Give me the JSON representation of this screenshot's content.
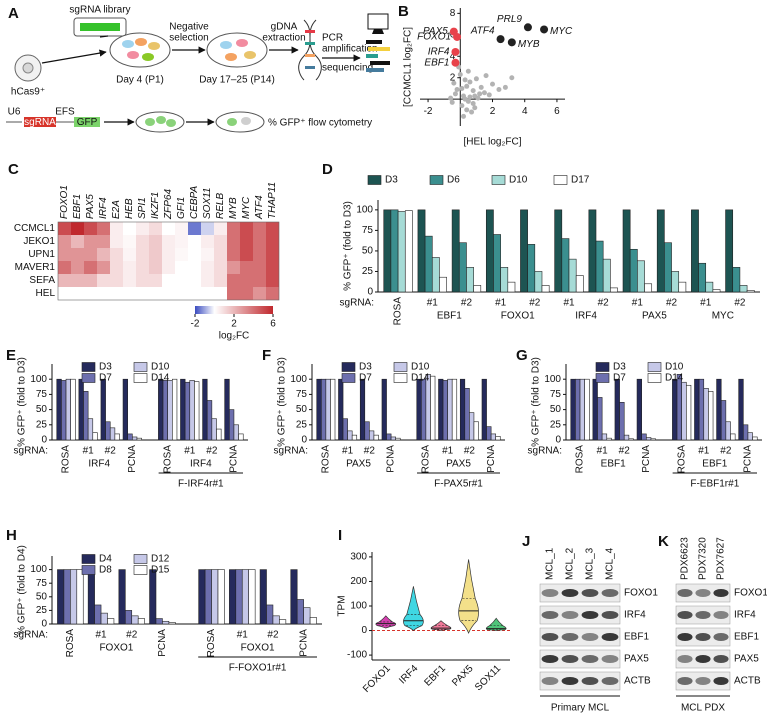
{
  "schematic": {
    "letter": "A",
    "library": "sgRNA library",
    "cell": "hCas9⁺",
    "negative_selection": [
      "Negative",
      "selection"
    ],
    "day1": "Day 4 (P1)",
    "extraction": [
      "gDNA",
      "extraction"
    ],
    "day2": "Day 17–25 (P14)",
    "sequencing": [
      "PCR",
      "amplification",
      "sequencing"
    ],
    "promoter1": "U6",
    "insert": "sgRNA",
    "promoter2": "EFS",
    "reporter": "GFP",
    "readout": "% GFP⁺ flow cytometry"
  },
  "chart_data": [
    {
      "type": "scatter",
      "letter": "B",
      "xlabel": "[HEL log₂FC]",
      "ylabel": "[CCMCL1 log₂FC]",
      "xlim": [
        -2.5,
        6.5
      ],
      "ylim": [
        -2.5,
        8.5
      ],
      "xticks": [
        -2,
        2,
        4,
        6
      ],
      "yticks": [
        2,
        4,
        6,
        8
      ],
      "points": [
        {
          "label": "PAX5",
          "x": -0.4,
          "y": 6.3,
          "color": "#e8424a"
        },
        {
          "label": "FOXO1",
          "x": -0.2,
          "y": 5.8,
          "color": "#e8424a"
        },
        {
          "label": "IRF4",
          "x": -0.3,
          "y": 4.4,
          "color": "#e8424a"
        },
        {
          "label": "EBF1",
          "x": -0.3,
          "y": 3.4,
          "color": "#e8424a"
        },
        {
          "label": "PRL9",
          "x": 4.2,
          "y": 6.7,
          "color": "#222222"
        },
        {
          "label": "MYC",
          "x": 5.2,
          "y": 6.5,
          "color": "#222222"
        },
        {
          "label": "ATF4",
          "x": 2.5,
          "y": 5.6,
          "color": "#222222"
        },
        {
          "label": "MYB",
          "x": 3.2,
          "y": 5.3,
          "color": "#222222"
        }
      ],
      "background": {
        "color": "#b3b3b3",
        "x": [
          0.2,
          0.5,
          -0.3,
          0.8,
          1.1,
          0.1,
          -0.5,
          0.4,
          1.5,
          0.9,
          0.3,
          -0.2,
          0.6,
          1.3,
          2.0,
          0.7,
          -0.6,
          0.0,
          0.2,
          1.8,
          2.4,
          0.5,
          1.0,
          0.3,
          -0.4,
          0.8,
          1.6,
          0.1,
          0.4,
          2.8,
          1.2,
          -0.1,
          0.6,
          0.9,
          3.2
        ],
        "y": [
          0.3,
          -0.2,
          0.5,
          0.8,
          0.1,
          -0.6,
          -0.3,
          1.2,
          0.6,
          -0.8,
          1.8,
          0.9,
          0.2,
          1.1,
          1.4,
          -1.2,
          0.1,
          2.3,
          -1.6,
          0.4,
          0.9,
          2.6,
          1.9,
          0.0,
          1.5,
          -0.4,
          2.2,
          1.0,
          -1.0,
          1.1,
          0.5,
          3.0,
          1.6,
          0.3,
          2.0
        ]
      }
    },
    {
      "type": "heatmap",
      "letter": "C",
      "columns": [
        "FOXO1",
        "EBF1",
        "PAX5",
        "IRF4",
        "E2A",
        "HEB",
        "SPI1",
        "IKZF1",
        "ZFP64",
        "GFI1",
        "CEBPA",
        "SOX11",
        "RELB",
        "MYB",
        "MYC",
        "ATF4",
        "THAP11"
      ],
      "rows": [
        "CCMCL1",
        "JEKO1",
        "UPN1",
        "MAVER1",
        "SEFA",
        "HEL"
      ],
      "values": [
        [
          5,
          6,
          5,
          4,
          0.5,
          0,
          0.5,
          1,
          0,
          0.3,
          -1.5,
          -0.5,
          0.5,
          4,
          5,
          4,
          5
        ],
        [
          3,
          2,
          3,
          3,
          0.5,
          0.2,
          1,
          1.5,
          0.5,
          0.3,
          0,
          0.5,
          1,
          4,
          5,
          4,
          5
        ],
        [
          3,
          3,
          3,
          2,
          1,
          0.3,
          1,
          1.5,
          0.5,
          0.2,
          0,
          0.3,
          1,
          4,
          5,
          4,
          5
        ],
        [
          4,
          3,
          4,
          3,
          1,
          0.5,
          1,
          1.5,
          0.5,
          0,
          0,
          0.5,
          1,
          3,
          4,
          4,
          5
        ],
        [
          2,
          2,
          2,
          1,
          1,
          0.5,
          1,
          1,
          0,
          0,
          0,
          0.5,
          1,
          4,
          4,
          4,
          5
        ],
        [
          0,
          0,
          0,
          0,
          0,
          0,
          0,
          0,
          0,
          0,
          0,
          0,
          0,
          4,
          4,
          3,
          4
        ]
      ],
      "clim": [
        -2,
        6
      ],
      "colors": [
        "#3b4cc0",
        "#ffffff",
        "#c0282d"
      ],
      "colorbar": {
        "ticks": [
          -2,
          2,
          6
        ],
        "label": "log₂FC"
      }
    },
    {
      "type": "bar",
      "letter": "D",
      "ylabel": "% GFP⁺ (fold to D3)",
      "ylim": [
        0,
        112
      ],
      "yticks": [
        0,
        25,
        50,
        75,
        100
      ],
      "legend": "top",
      "row_label": "sgRNA:",
      "blocks": [
        {
          "groups": [
            {
              "categories": [
                "ROSA"
              ]
            },
            {
              "name": "EBF1",
              "categories": [
                "#1",
                "#2"
              ]
            },
            {
              "name": "FOXO1",
              "categories": [
                "#1",
                "#2"
              ]
            },
            {
              "name": "IRF4",
              "categories": [
                "#1",
                "#2"
              ]
            },
            {
              "name": "PAX5",
              "categories": [
                "#1",
                "#2"
              ]
            },
            {
              "name": "MYC",
              "categories": [
                "#1",
                "#2"
              ]
            }
          ]
        }
      ],
      "series": [
        {
          "name": "D3",
          "color": "#1d5452",
          "values": [
            100,
            100,
            100,
            100,
            100,
            100,
            100,
            100,
            100,
            100,
            100
          ]
        },
        {
          "name": "D6",
          "color": "#3b8f8f",
          "values": [
            100,
            68,
            60,
            70,
            58,
            65,
            62,
            52,
            60,
            35,
            30
          ]
        },
        {
          "name": "D10",
          "color": "#a6dbd6",
          "values": [
            98,
            42,
            30,
            30,
            25,
            40,
            40,
            38,
            25,
            12,
            8
          ]
        },
        {
          "name": "D17",
          "color": "#ffffff",
          "values": [
            99,
            18,
            8,
            12,
            8,
            20,
            5,
            10,
            12,
            3,
            2
          ]
        }
      ]
    },
    {
      "type": "bar",
      "letter": "E",
      "ylabel": "% GFP⁺ (fold to D3)",
      "ylim": [
        0,
        125
      ],
      "yticks": [
        0,
        25,
        50,
        75,
        100
      ],
      "legend": "upper left",
      "row_label": "sgRNA:",
      "blocks": [
        {
          "groups": [
            {
              "categories": [
                "ROSA"
              ]
            },
            {
              "name": "IRF4",
              "categories": [
                "#1",
                "#2"
              ]
            },
            {
              "categories": [
                "PCNA"
              ]
            }
          ]
        },
        {
          "name": "F-IRF4r#1",
          "groups": [
            {
              "categories": [
                "ROSA"
              ]
            },
            {
              "name": "IRF4",
              "categories": [
                "#1",
                "#2"
              ]
            },
            {
              "categories": [
                "PCNA"
              ]
            }
          ]
        }
      ],
      "series": [
        {
          "name": "D3",
          "color": "#252a5c",
          "values": [
            100,
            100,
            100,
            100,
            100,
            100,
            100,
            100
          ]
        },
        {
          "name": "D7",
          "color": "#6d6fae",
          "values": [
            98,
            80,
            30,
            10,
            98,
            95,
            65,
            50
          ]
        },
        {
          "name": "D10",
          "color": "#c6c8e8",
          "values": [
            100,
            35,
            20,
            5,
            98,
            98,
            35,
            25
          ]
        },
        {
          "name": "D14",
          "color": "#ffffff",
          "values": [
            100,
            12,
            10,
            3,
            100,
            96,
            18,
            10
          ]
        }
      ]
    },
    {
      "type": "bar",
      "letter": "F",
      "ylabel": "% GFP⁺ (fold to D3)",
      "ylim": [
        0,
        125
      ],
      "yticks": [
        0,
        25,
        50,
        75,
        100
      ],
      "legend": "upper left",
      "row_label": "sgRNA:",
      "blocks": [
        {
          "groups": [
            {
              "categories": [
                "ROSA"
              ]
            },
            {
              "name": "PAX5",
              "categories": [
                "#1",
                "#2"
              ]
            },
            {
              "categories": [
                "PCNA"
              ]
            }
          ]
        },
        {
          "name": "F-PAX5r#1",
          "groups": [
            {
              "categories": [
                "ROSA"
              ]
            },
            {
              "name": "PAX5",
              "categories": [
                "#1",
                "#2"
              ]
            },
            {
              "categories": [
                "PCNA"
              ]
            }
          ]
        }
      ],
      "series": [
        {
          "name": "D3",
          "color": "#252a5c",
          "values": [
            100,
            100,
            100,
            100,
            100,
            100,
            100,
            100
          ]
        },
        {
          "name": "D7",
          "color": "#6d6fae",
          "values": [
            100,
            35,
            30,
            10,
            100,
            98,
            85,
            22
          ]
        },
        {
          "name": "D10",
          "color": "#c6c8e8",
          "values": [
            100,
            15,
            15,
            5,
            108,
            100,
            45,
            10
          ]
        },
        {
          "name": "D14",
          "color": "#ffffff",
          "values": [
            100,
            8,
            8,
            3,
            105,
            100,
            30,
            6
          ]
        }
      ]
    },
    {
      "type": "bar",
      "letter": "G",
      "ylabel": "% GFP⁺ (fold to D3)",
      "ylim": [
        0,
        125
      ],
      "yticks": [
        0,
        25,
        50,
        75,
        100
      ],
      "legend": "upper left",
      "row_label": "sgRNA:",
      "blocks": [
        {
          "groups": [
            {
              "categories": [
                "ROSA"
              ]
            },
            {
              "name": "EBF1",
              "categories": [
                "#1",
                "#2"
              ]
            },
            {
              "categories": [
                "PCNA"
              ]
            }
          ]
        },
        {
          "name": "F-EBF1r#1",
          "groups": [
            {
              "categories": [
                "ROSA"
              ]
            },
            {
              "name": "EBF1",
              "categories": [
                "#1",
                "#2"
              ]
            },
            {
              "categories": [
                "PCNA"
              ]
            }
          ]
        }
      ],
      "series": [
        {
          "name": "D3",
          "color": "#252a5c",
          "values": [
            100,
            100,
            100,
            100,
            100,
            100,
            100,
            100
          ]
        },
        {
          "name": "D7",
          "color": "#6d6fae",
          "values": [
            100,
            70,
            62,
            10,
            108,
            100,
            65,
            25
          ]
        },
        {
          "name": "D10",
          "color": "#c6c8e8",
          "values": [
            100,
            10,
            8,
            4,
            95,
            85,
            30,
            12
          ]
        },
        {
          "name": "D14",
          "color": "#ffffff",
          "values": [
            100,
            3,
            2,
            2,
            90,
            80,
            10,
            5
          ]
        }
      ]
    },
    {
      "type": "bar",
      "letter": "H",
      "ylabel": "% GFP⁺ (fold to D4)",
      "ylim": [
        0,
        125
      ],
      "yticks": [
        0,
        25,
        50,
        75,
        100
      ],
      "legend": "upper left",
      "row_label": "sgRNA:",
      "blocks": [
        {
          "groups": [
            {
              "categories": [
                "ROSA"
              ]
            },
            {
              "name": "FOXO1",
              "categories": [
                "#1",
                "#2"
              ]
            },
            {
              "categories": [
                "PCNA"
              ]
            }
          ]
        },
        {
          "name": "F-FOXO1r#1",
          "groups": [
            {
              "categories": [
                "ROSA"
              ]
            },
            {
              "name": "FOXO1",
              "categories": [
                "#1",
                "#2"
              ]
            },
            {
              "categories": [
                "PCNA"
              ]
            }
          ]
        }
      ],
      "series": [
        {
          "name": "D4",
          "color": "#252a5c",
          "values": [
            100,
            100,
            100,
            100,
            100,
            100,
            100,
            100
          ]
        },
        {
          "name": "D8",
          "color": "#6d6fae",
          "values": [
            100,
            35,
            25,
            10,
            100,
            100,
            35,
            45
          ]
        },
        {
          "name": "D12",
          "color": "#c6c8e8",
          "values": [
            100,
            20,
            15,
            5,
            100,
            100,
            15,
            30
          ]
        },
        {
          "name": "D15",
          "color": "#ffffff",
          "values": [
            100,
            10,
            10,
            3,
            100,
            100,
            8,
            12
          ]
        }
      ]
    },
    {
      "type": "violin",
      "letter": "I",
      "ylabel": "TPM",
      "ylim": [
        -120,
        320
      ],
      "yticks": [
        -100,
        0,
        100,
        200,
        300
      ],
      "hline": 0,
      "categories": [
        "FOXO1",
        "IRF4",
        "EBF1",
        "PAX5",
        "SOX11"
      ],
      "colors": [
        "#d63fb0",
        "#3fd7e3",
        "#f07a9a",
        "#f3e08a",
        "#4fc47a"
      ],
      "min": [
        10,
        0,
        0,
        -10,
        0
      ],
      "q1": [
        20,
        20,
        5,
        40,
        3
      ],
      "median": [
        28,
        40,
        10,
        80,
        8
      ],
      "q3": [
        35,
        65,
        20,
        130,
        20
      ],
      "max": [
        60,
        180,
        40,
        290,
        50
      ]
    }
  ],
  "blots": [
    {
      "letter": "J",
      "lanes": [
        "MCL_1",
        "MCL_2",
        "MCL_3",
        "MCL_4"
      ],
      "rows": [
        "FOXO1",
        "IRF4",
        "EBF1",
        "PAX5",
        "ACTB"
      ],
      "caption": "Primary MCL"
    },
    {
      "letter": "K",
      "lanes": [
        "PDX6623",
        "PDX7320",
        "PDX7627"
      ],
      "rows": [
        "FOXO1",
        "IRF4",
        "EBF1",
        "PAX5",
        "ACTB"
      ],
      "caption": "MCL PDX"
    }
  ]
}
